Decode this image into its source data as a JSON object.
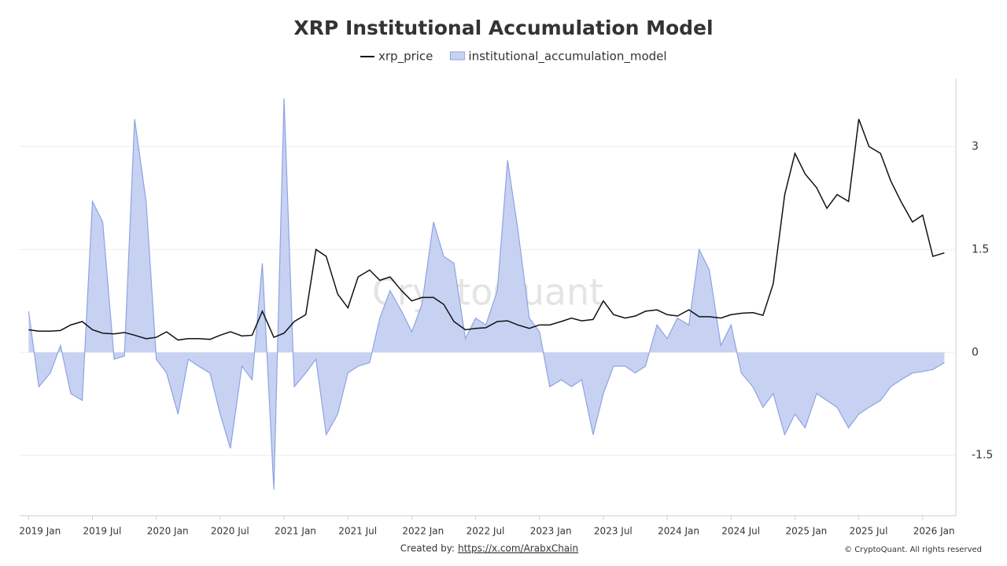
{
  "chart_data": {
    "type": "line",
    "title": "XRP Institutional Accumulation Model",
    "watermark": "CryptoQuant",
    "footer": {
      "created_by": "Created by:",
      "link": "https://x.com/ArabxChain",
      "copyright": "© CryptoQuant. All rights reserved"
    },
    "legend": "top",
    "grid": true,
    "x": [
      2019.0,
      2019.08,
      2019.17,
      2019.25,
      2019.33,
      2019.42,
      2019.5,
      2019.58,
      2019.67,
      2019.75,
      2019.83,
      2019.92,
      2020.0,
      2020.08,
      2020.17,
      2020.25,
      2020.33,
      2020.42,
      2020.5,
      2020.58,
      2020.67,
      2020.75,
      2020.83,
      2020.92,
      2021.0,
      2021.08,
      2021.17,
      2021.25,
      2021.33,
      2021.42,
      2021.5,
      2021.58,
      2021.67,
      2021.75,
      2021.83,
      2021.92,
      2022.0,
      2022.08,
      2022.17,
      2022.25,
      2022.33,
      2022.42,
      2022.5,
      2022.58,
      2022.67,
      2022.75,
      2022.83,
      2022.92,
      2023.0,
      2023.08,
      2023.17,
      2023.25,
      2023.33,
      2023.42,
      2023.5,
      2023.58,
      2023.67,
      2023.75,
      2023.83,
      2023.92,
      2024.0,
      2024.08,
      2024.17,
      2024.25,
      2024.33,
      2024.42,
      2024.5,
      2024.58,
      2024.67,
      2024.75,
      2024.83,
      2024.92,
      2025.0,
      2025.08,
      2025.17,
      2025.25,
      2025.33,
      2025.42,
      2025.5,
      2025.58,
      2025.67,
      2025.75,
      2025.83,
      2025.92,
      2026.0,
      2026.08,
      2026.17
    ],
    "series": [
      {
        "name": "xrp_price",
        "color": "#111111",
        "style": "line",
        "values": [
          0.33,
          0.31,
          0.31,
          0.32,
          0.4,
          0.45,
          0.33,
          0.28,
          0.27,
          0.29,
          0.25,
          0.2,
          0.22,
          0.3,
          0.18,
          0.2,
          0.2,
          0.19,
          0.25,
          0.3,
          0.24,
          0.25,
          0.6,
          0.22,
          0.28,
          0.45,
          0.55,
          1.5,
          1.4,
          0.85,
          0.65,
          1.1,
          1.2,
          1.05,
          1.1,
          0.9,
          0.75,
          0.8,
          0.8,
          0.7,
          0.45,
          0.33,
          0.35,
          0.36,
          0.45,
          0.46,
          0.4,
          0.35,
          0.4,
          0.4,
          0.45,
          0.5,
          0.46,
          0.48,
          0.75,
          0.55,
          0.5,
          0.53,
          0.6,
          0.62,
          0.55,
          0.53,
          0.62,
          0.52,
          0.52,
          0.5,
          0.55,
          0.57,
          0.58,
          0.54,
          1.0,
          2.3,
          2.9,
          2.6,
          2.4,
          2.1,
          2.3,
          2.2,
          3.4,
          3.0,
          2.9,
          2.5,
          2.2,
          1.9,
          2.0,
          1.4,
          1.45
        ]
      },
      {
        "name": "institutional_accumulation_model",
        "color": "#8ea2e2",
        "fill": "#c7d2f2",
        "style": "area",
        "values": [
          0.6,
          -0.5,
          -0.3,
          0.1,
          -0.6,
          -0.7,
          2.2,
          1.9,
          -0.1,
          -0.05,
          3.4,
          2.2,
          -0.1,
          -0.3,
          -0.9,
          -0.1,
          -0.2,
          -0.3,
          -0.9,
          -1.4,
          -0.2,
          -0.4,
          1.3,
          -2.0,
          3.7,
          -0.5,
          -0.3,
          -0.1,
          -1.2,
          -0.9,
          -0.3,
          -0.2,
          -0.15,
          0.5,
          0.9,
          0.6,
          0.3,
          0.7,
          1.9,
          1.4,
          1.3,
          0.2,
          0.5,
          0.4,
          0.9,
          2.8,
          1.8,
          0.5,
          0.3,
          -0.5,
          -0.4,
          -0.5,
          -0.4,
          -1.2,
          -0.6,
          -0.2,
          -0.2,
          -0.3,
          -0.2,
          0.4,
          0.2,
          0.5,
          0.4,
          1.5,
          1.2,
          0.1,
          0.4,
          -0.3,
          -0.5,
          -0.8,
          -0.6,
          -1.2,
          -0.9,
          -1.1,
          -0.6,
          -0.7,
          -0.8,
          -1.1,
          -0.9,
          -0.8,
          -0.7,
          -0.5,
          -0.4,
          -0.3,
          -0.28,
          -0.25,
          -0.15
        ]
      }
    ],
    "xlim": [
      2018.93,
      2026.26
    ],
    "xticks": [
      {
        "value": 2019.0,
        "label": "2019 Jan"
      },
      {
        "value": 2019.5,
        "label": "2019 Jul"
      },
      {
        "value": 2020.0,
        "label": "2020 Jan"
      },
      {
        "value": 2020.5,
        "label": "2020 Jul"
      },
      {
        "value": 2021.0,
        "label": "2021 Jan"
      },
      {
        "value": 2021.5,
        "label": "2021 Jul"
      },
      {
        "value": 2022.0,
        "label": "2022 Jan"
      },
      {
        "value": 2022.5,
        "label": "2022 Jul"
      },
      {
        "value": 2023.0,
        "label": "2023 Jan"
      },
      {
        "value": 2023.5,
        "label": "2023 Jul"
      },
      {
        "value": 2024.0,
        "label": "2024 Jan"
      },
      {
        "value": 2024.5,
        "label": "2024 Jul"
      },
      {
        "value": 2025.0,
        "label": "2025 Jan"
      },
      {
        "value": 2025.5,
        "label": "2025 Jul"
      },
      {
        "value": 2026.0,
        "label": "2026 Jan"
      }
    ],
    "ylim": [
      -2.38,
      3.99
    ],
    "yticks": [
      -1.5,
      0,
      1.5,
      3
    ]
  }
}
